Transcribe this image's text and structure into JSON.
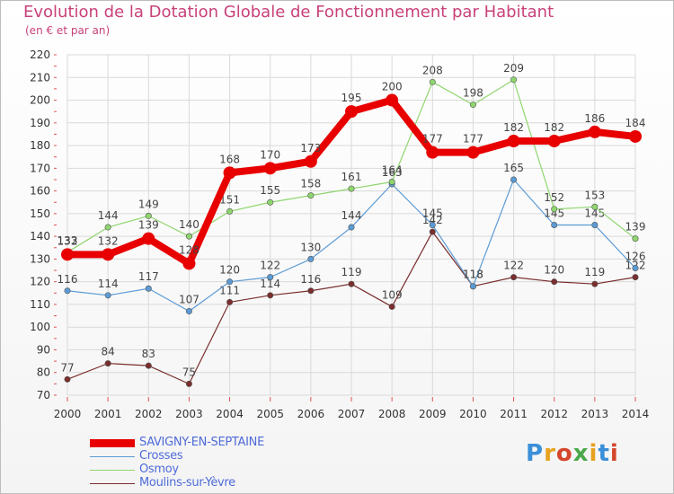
{
  "header": {
    "title": "Evolution de la Dotation Globale de Fonctionnement par Habitant",
    "subtitle": "(en € et par an)"
  },
  "chart_data": {
    "type": "line",
    "title": "Evolution de la Dotation Globale de Fonctionnement par Habitant",
    "subtitle": "(en € et par an)",
    "xlabel": "",
    "ylabel": "",
    "ylim": [
      70,
      220
    ],
    "yticks": [
      70,
      80,
      90,
      100,
      110,
      120,
      130,
      140,
      150,
      160,
      170,
      180,
      190,
      200,
      210,
      220
    ],
    "grid": true,
    "x": [
      "2000",
      "2001",
      "2002",
      "2003",
      "2004",
      "2005",
      "2006",
      "2007",
      "2008",
      "2009",
      "2010",
      "2011",
      "2012",
      "2013",
      "2014"
    ],
    "series": [
      {
        "name": "SAVIGNY-EN-SEPTAINE",
        "color": "#e80000",
        "values": [
          132,
          132,
          139,
          128,
          168,
          170,
          173,
          195,
          200,
          177,
          177,
          182,
          182,
          186,
          184
        ]
      },
      {
        "name": "Crosses",
        "color": "#5b9bd5",
        "values": [
          116,
          114,
          117,
          107,
          120,
          122,
          130,
          144,
          163,
          145,
          118,
          165,
          145,
          145,
          126
        ]
      },
      {
        "name": "Osmoy",
        "color": "#8fd66e",
        "values": [
          133,
          144,
          149,
          140,
          151,
          155,
          158,
          161,
          164,
          208,
          198,
          209,
          152,
          153,
          139
        ]
      },
      {
        "name": "Moulins-sur-Yèvre",
        "color": "#7a2e2e",
        "values": [
          77,
          84,
          83,
          75,
          111,
          114,
          116,
          119,
          109,
          142,
          118,
          122,
          120,
          119,
          122
        ]
      }
    ]
  },
  "legend": [
    {
      "label": "SAVIGNY-EN-SEPTAINE",
      "color": "#e80000"
    },
    {
      "label": "Crosses",
      "color": "#5b9bd5"
    },
    {
      "label": "Osmoy",
      "color": "#8fd66e"
    },
    {
      "label": "Moulins-sur-Yèvre",
      "color": "#7a2e2e"
    }
  ],
  "logo": {
    "text": "Proxiti",
    "colors": [
      "#3a8fd8",
      "#e8a21f",
      "#d4472c",
      "#4aa84a",
      "#e8a21f",
      "#3a8fd8",
      "#d4472c"
    ]
  }
}
